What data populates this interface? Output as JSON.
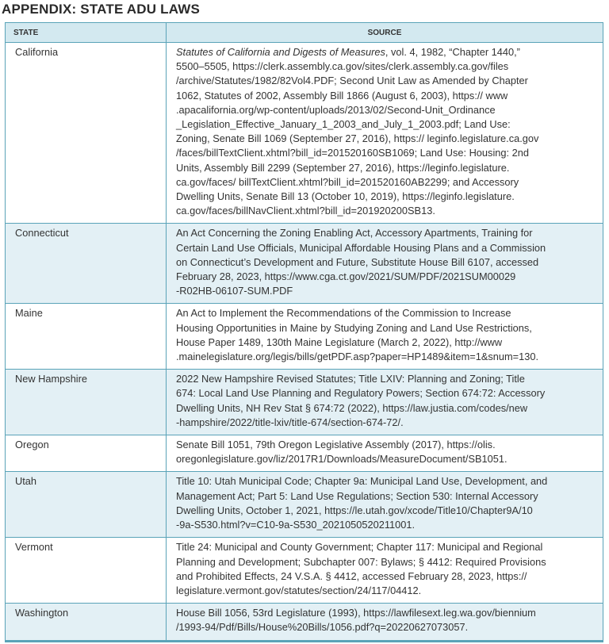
{
  "header": {
    "title": "APPENDIX: STATE ADU LAWS"
  },
  "table": {
    "columns": [
      "STATE",
      "SOURCE"
    ],
    "rows": [
      {
        "state": "California",
        "source": [
          {
            "italic": "Statutes of California and Digests of Measures",
            "text": ", vol. 4, 1982, “Chapter 1440,”"
          },
          "5500–5505, https://clerk.assembly.ca.gov/sites/clerk.assembly.ca.gov/files",
          "/archive/Statutes/1982/82Vol4.PDF; Second Unit Law as Amended by Chapter",
          "1062, Statutes of 2002, Assembly Bill 1866 (August 6, 2003), https:// www",
          ".apacalifornia.org/wp-content/uploads/2013/02/Second-Unit_Ordinance",
          "_Legislation_Effective_January_1_2003_and_July_1_2003.pdf; Land Use:",
          "Zoning, Senate Bill 1069 (September 27, 2016), https:// leginfo.legislature.ca.gov",
          "/faces/billTextClient.xhtml?bill_id=201520160SB1069; Land Use: Housing: 2nd",
          "Units, Assembly Bill 2299 (September 27, 2016), https://leginfo.legislature.",
          "ca.gov/faces/ billTextClient.xhtml?bill_id=201520160AB2299; and Accessory",
          "Dwelling Units, Senate Bill 13 (October 10, 2019), https://leginfo.legislature.",
          "ca.gov/faces/billNavClient.xhtml?bill_id=201920200SB13."
        ]
      },
      {
        "state": "Connecticut",
        "source": [
          "An Act Concerning the Zoning Enabling Act, Accessory Apartments, Training for",
          "Certain Land Use Officials, Municipal Affordable Housing Plans and a Commission",
          "on Connecticut’s Development and Future, Substitute House Bill 6107, accessed",
          "February 28, 2023, https://www.cga.ct.gov/2021/SUM/PDF/2021SUM00029",
          "-R02HB-06107-SUM.PDF"
        ]
      },
      {
        "state": "Maine",
        "source": [
          "An Act to Implement the Recommendations of the Commission to Increase",
          "Housing Opportunities in Maine by Studying Zoning and Land Use Restrictions,",
          "House Paper 1489, 130th Maine Legislature (March 2, 2022), http://www",
          ".mainelegislature.org/legis/bills/getPDF.asp?paper=HP1489&item=1&snum=130."
        ]
      },
      {
        "state": "New Hampshire",
        "source": [
          "2022 New Hampshire Revised Statutes; Title LXIV: Planning and Zoning; Title",
          "674: Local Land Use Planning and Regulatory Powers; Section 674:72: Accessory",
          "Dwelling Units, NH Rev Stat § 674:72 (2022), https://law.justia.com/codes/new",
          "-hampshire/2022/title-lxiv/title-674/section-674-72/."
        ]
      },
      {
        "state": "Oregon",
        "source": [
          "Senate Bill 1051, 79th Oregon Legislative Assembly (2017),  https://olis.",
          "oregonlegislature.gov/liz/2017R1/Downloads/MeasureDocument/SB1051."
        ]
      },
      {
        "state": "Utah",
        "source": [
          "Title 10: Utah Municipal Code; Chapter 9a: Municipal Land Use, Development, and",
          "Management Act; Part 5: Land Use Regulations; Section 530: Internal Accessory",
          "Dwelling Units, October 1, 2021, https://le.utah.gov/xcode/Title10/Chapter9A/10",
          "-9a-S530.html?v=C10-9a-S530_2021050520211001."
        ]
      },
      {
        "state": "Vermont",
        "source": [
          "Title 24: Municipal and County Government; Chapter 117: Municipal and Regional",
          "Planning and Development; Subchapter 007: Bylaws; § 4412: Required Provisions",
          "and Prohibited Effects, 24 V.S.A. § 4412, accessed February 28, 2023, https://",
          "legislature.vermont.gov/statutes/section/24/117/04412."
        ]
      },
      {
        "state": "Washington",
        "source": [
          "House Bill 1056, 53rd Legislature (1993), https://lawfilesext.leg.wa.gov/biennium",
          "/1993-94/Pdf/Bills/House%20Bills/1056.pdf?q=20220627073057."
        ]
      }
    ]
  }
}
